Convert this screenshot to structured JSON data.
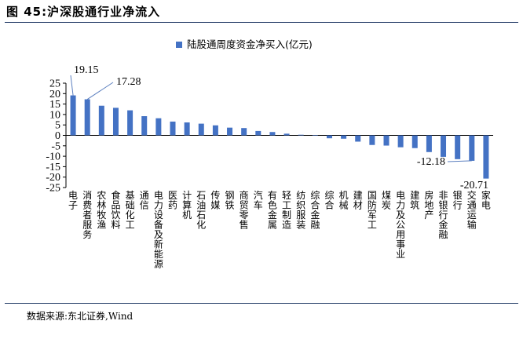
{
  "figure": {
    "title": "图 45:沪深股通行业净流入",
    "source": "数据来源:东北证券,Wind"
  },
  "colors": {
    "bar": "#4472C4",
    "axis": "#000000"
  },
  "chart_data": {
    "type": "bar",
    "legend_label": "陆股通周度资金净买入(亿元)",
    "legend_position": "top-center",
    "ylim": [
      -25,
      25
    ],
    "yticks": [
      25,
      20,
      15,
      10,
      5,
      0,
      -5,
      -10,
      -15,
      -20,
      -25
    ],
    "categories": [
      "电子",
      "消费者服务",
      "农林牧渔",
      "食品饮料",
      "基础化工",
      "通信",
      "电力设备及新能源",
      "医药",
      "计算机",
      "石油石化",
      "传媒",
      "钢铁",
      "商贸零售",
      "汽车",
      "有色金属",
      "轻工制造",
      "纺织服装",
      "综合金融",
      "综合",
      "机械",
      "建材",
      "国防军工",
      "煤炭",
      "电力及公用事业",
      "建筑",
      "房地产",
      "非银行金融",
      "银行",
      "交通运输",
      "家电"
    ],
    "values": [
      19.15,
      17.28,
      14.2,
      13.2,
      12.0,
      9.2,
      8.2,
      6.6,
      6.2,
      5.6,
      4.8,
      3.7,
      3.5,
      2.1,
      1.6,
      0.8,
      0.3,
      0.1,
      -1.4,
      -1.6,
      -3.0,
      -4.6,
      -4.9,
      -5.7,
      -6.1,
      -8.0,
      -10.3,
      -11.4,
      -12.18,
      -20.71
    ],
    "data_labels": [
      {
        "index": 0,
        "text": "19.15"
      },
      {
        "index": 1,
        "text": "17.28"
      },
      {
        "index": 28,
        "text": "-12.18"
      },
      {
        "index": 29,
        "text": "-20.71"
      }
    ]
  }
}
